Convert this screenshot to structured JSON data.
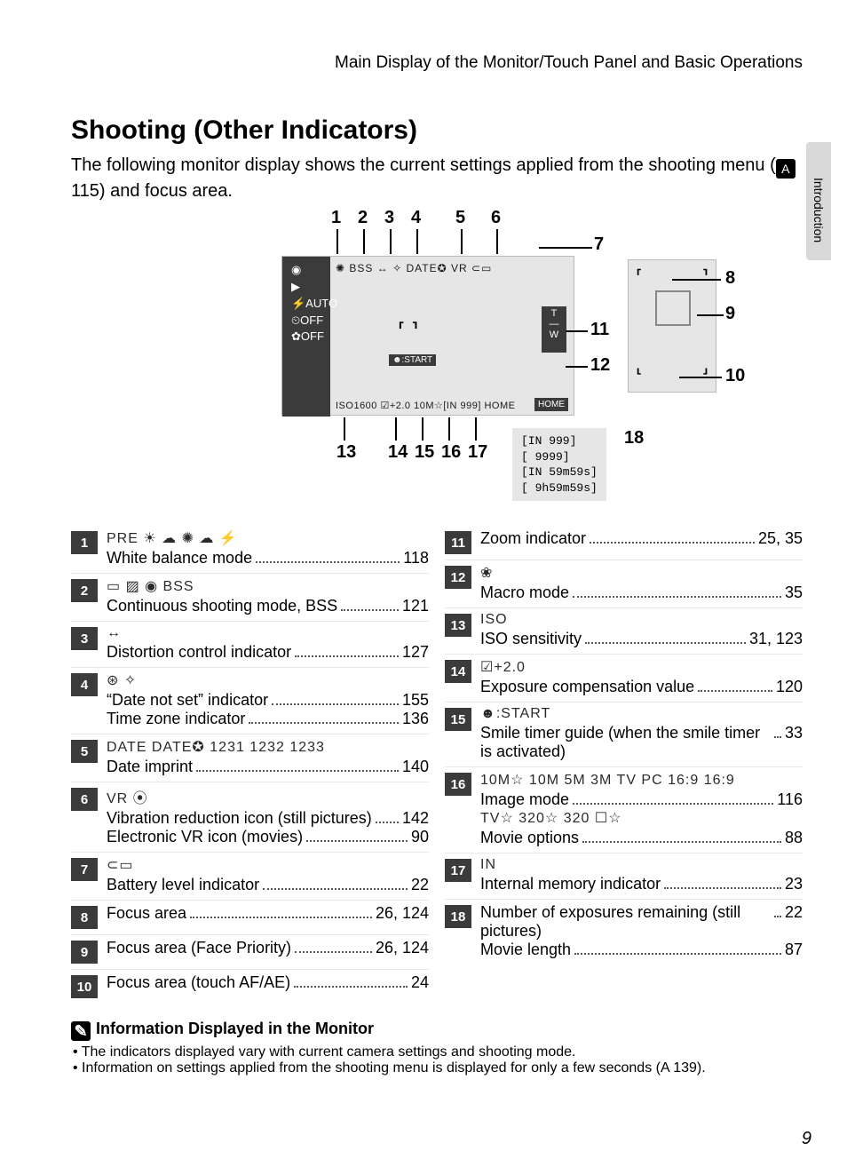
{
  "header": "Main Display of the Monitor/Touch Panel and Basic Operations",
  "side_tab": "Introduction",
  "title": "Shooting (Other Indicators)",
  "intro_a": "The following monitor display shows the current settings applied from the shooting menu (",
  "intro_ref": "115",
  "intro_b": ") and focus area.",
  "page_number": "9",
  "callouts_top": [
    "1",
    "2",
    "3",
    "4",
    "5",
    "6"
  ],
  "callouts_right": [
    "7",
    "8",
    "9",
    "10",
    "11",
    "12"
  ],
  "callouts_bottom": [
    "13",
    "14",
    "15",
    "16",
    "17"
  ],
  "callout_18": "18",
  "lcd_dark_icons": "◉\n▶\n⚡AUTO\n⏲OFF\n✿OFF",
  "lcd_top_row": "✺ BSS ↔ ✧ DATE✪ VR   ⊂▭",
  "lcd_bottom_row": "ISO1600 ☑+2.0 10M☆[IN 999]  HOME",
  "aux_l": "⸢",
  "aux_r": "⸣",
  "aux_bl": "⸤",
  "aux_br": "⸥",
  "remaining": [
    "[IN 999]",
    "[ 9999]",
    "[IN 59m59s]",
    "[ 9h59m59s]"
  ],
  "legend_left": [
    {
      "n": "1",
      "icons": "PRE ☀ ☁ ✺ ☁ ⚡",
      "entries": [
        {
          "t": "White balance mode",
          "p": "118"
        }
      ]
    },
    {
      "n": "2",
      "icons": "▭ ▨ ◉ BSS",
      "entries": [
        {
          "t": "Continuous shooting mode, BSS",
          "p": "121"
        }
      ]
    },
    {
      "n": "3",
      "icons": "↔",
      "entries": [
        {
          "t": "Distortion control indicator",
          "p": "127"
        }
      ]
    },
    {
      "n": "4",
      "icons": "⊛ ✧",
      "entries": [
        {
          "t": "“Date not set” indicator",
          "p": "155"
        },
        {
          "t": "Time zone indicator",
          "p": "136"
        }
      ]
    },
    {
      "n": "5",
      "icons": "DATE DATE✪ 1231 1232 1233",
      "entries": [
        {
          "t": "Date imprint",
          "p": "140"
        }
      ]
    },
    {
      "n": "6",
      "icons": "VR ⦿",
      "entries": [
        {
          "t": "Vibration reduction icon (still pictures)",
          "p": "142"
        },
        {
          "t": "Electronic VR icon (movies)",
          "p": "90"
        }
      ]
    },
    {
      "n": "7",
      "icons": "⊂▭",
      "entries": [
        {
          "t": "Battery level indicator",
          "p": "22"
        }
      ]
    },
    {
      "n": "8",
      "icons": "",
      "entries": [
        {
          "t": "Focus area",
          "p": "26, 124"
        }
      ]
    },
    {
      "n": "9",
      "icons": "",
      "entries": [
        {
          "t": "Focus area (Face Priority)",
          "p": "26, 124"
        }
      ]
    },
    {
      "n": "10",
      "icons": "",
      "entries": [
        {
          "t": "Focus area (touch AF/AE)",
          "p": "24"
        }
      ]
    }
  ],
  "legend_right": [
    {
      "n": "11",
      "icons": "",
      "entries": [
        {
          "t": "Zoom indicator",
          "p": "25, 35"
        }
      ]
    },
    {
      "n": "12",
      "icons": "❀",
      "entries": [
        {
          "t": "Macro mode",
          "p": "35"
        }
      ]
    },
    {
      "n": "13",
      "icons": "ISO",
      "entries": [
        {
          "t": "ISO sensitivity",
          "p": "31, 123"
        }
      ]
    },
    {
      "n": "14",
      "icons": "☑+2.0",
      "entries": [
        {
          "t": "Exposure compensation value",
          "p": "120"
        }
      ]
    },
    {
      "n": "15",
      "icons": "☻:START",
      "entries": [
        {
          "t": "Smile timer guide (when the smile timer is activated)",
          "p": "33"
        }
      ]
    },
    {
      "n": "16",
      "icons": "10M☆ 10M 5M 3M TV PC 16:9 16:9",
      "entries": [
        {
          "t": "Image mode",
          "p": "116"
        }
      ],
      "icons2": "TV☆ 320☆ 320 ☐☆",
      "entries2": [
        {
          "t": "Movie options",
          "p": "88"
        }
      ]
    },
    {
      "n": "17",
      "icons": "IN",
      "entries": [
        {
          "t": "Internal memory indicator",
          "p": "23"
        }
      ]
    },
    {
      "n": "18",
      "icons": "",
      "entries": [
        {
          "t": "Number of exposures remaining (still pictures)",
          "p": "22"
        },
        {
          "t": "Movie length",
          "p": "87"
        }
      ]
    }
  ],
  "footer_heading": "Information Displayed in the Monitor",
  "footer_bullets": [
    "The indicators displayed vary with current camera settings and shooting mode.",
    "Information on settings applied from the shooting menu is displayed for only a few seconds (A 139)."
  ]
}
